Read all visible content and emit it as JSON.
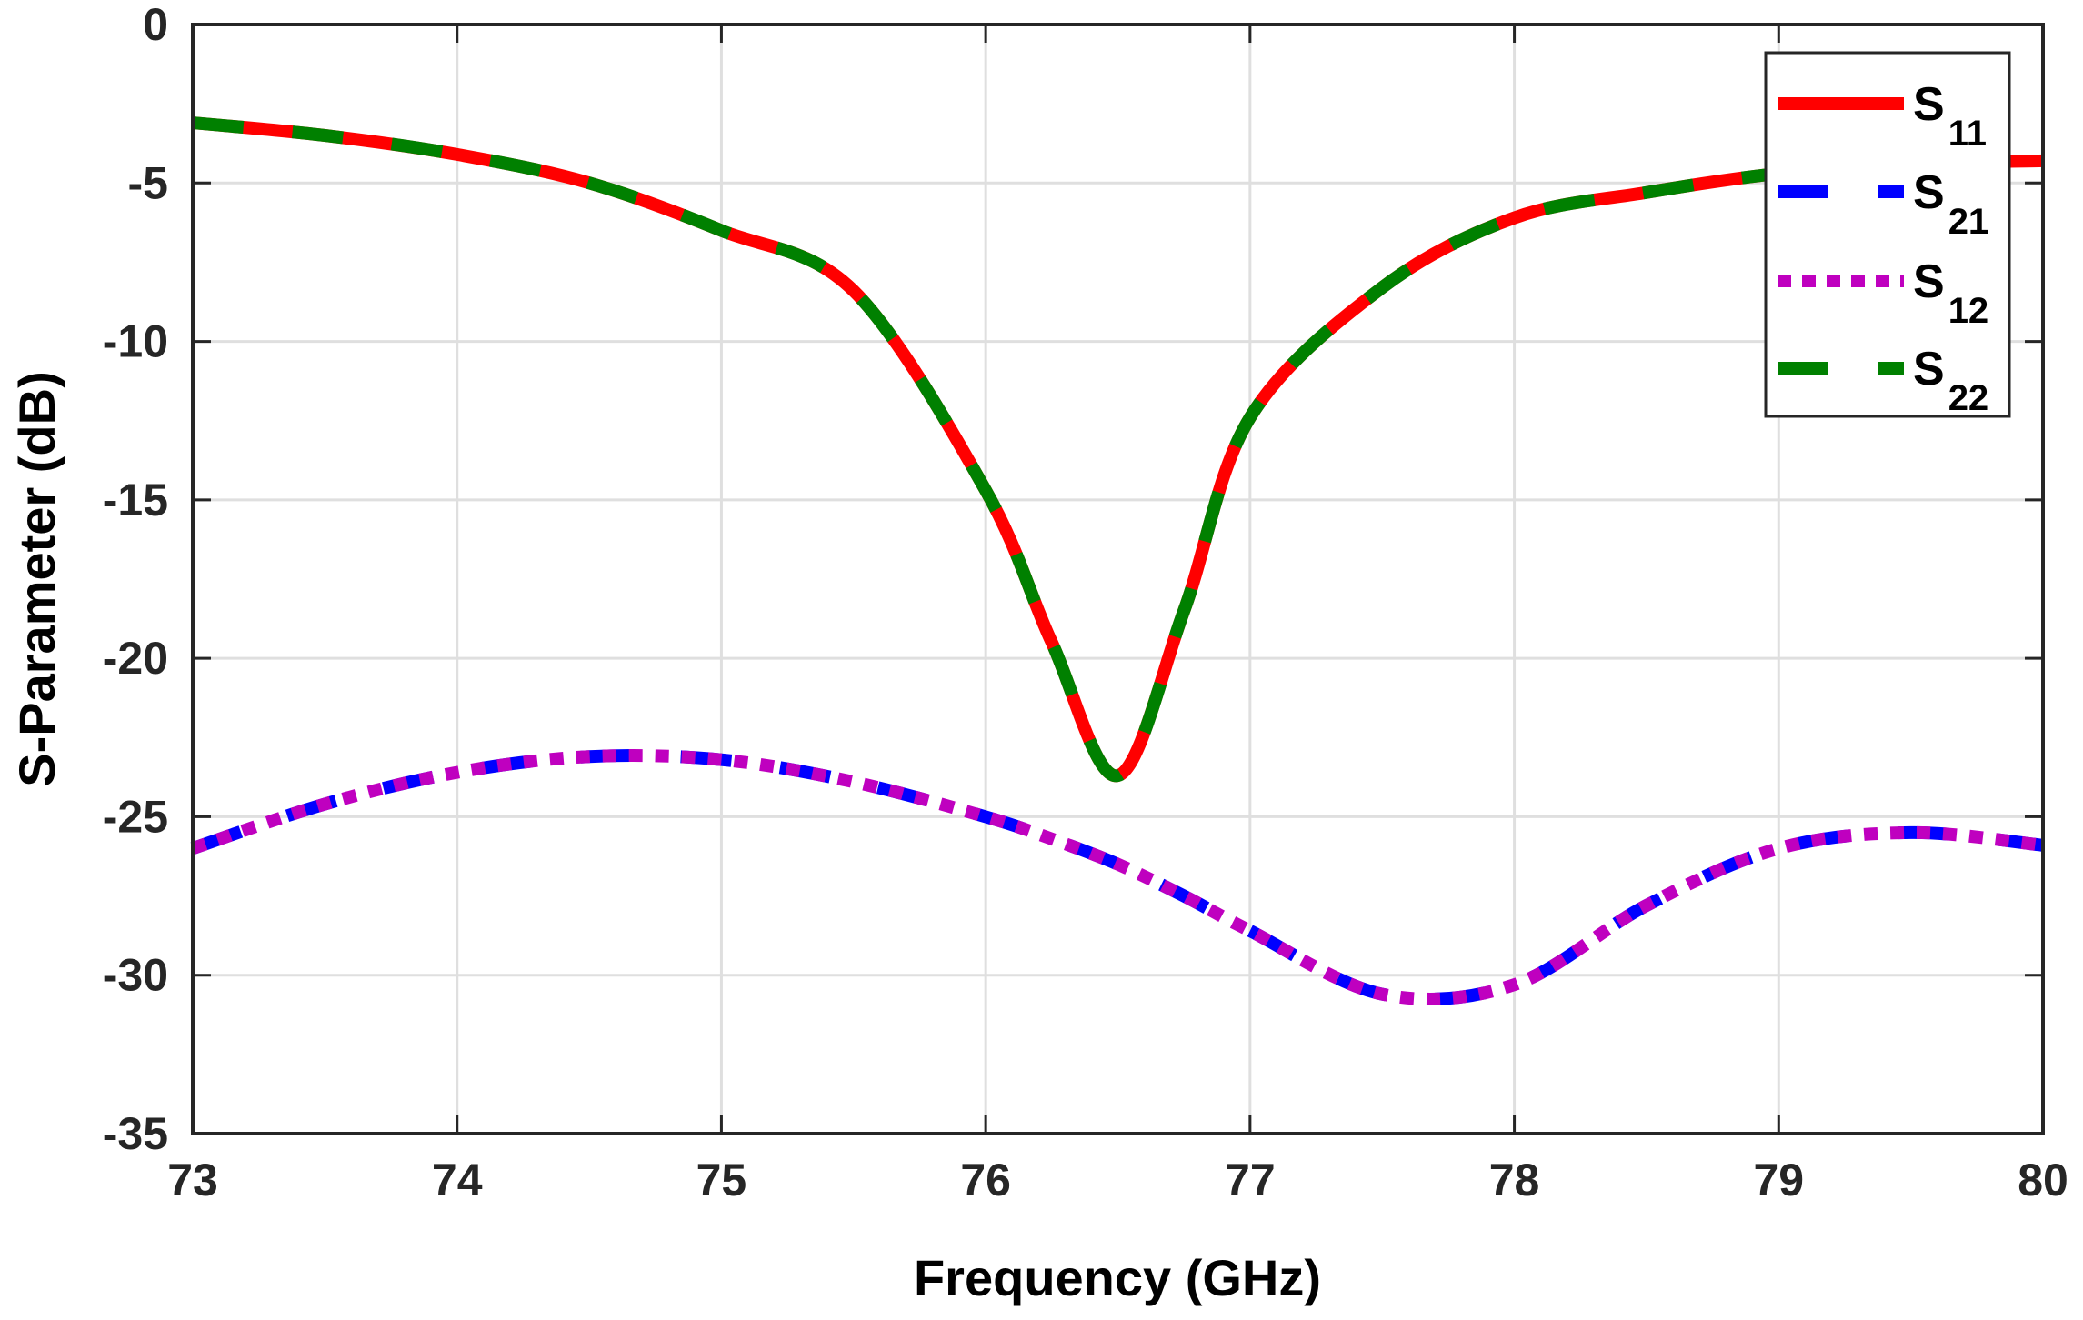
{
  "chart_data": {
    "type": "line",
    "title": "",
    "xlabel": "Frequency (GHz)",
    "ylabel": "S-Parameter (dB)",
    "xlim": [
      73,
      80
    ],
    "ylim": [
      -35,
      0
    ],
    "xticks": [
      73,
      74,
      75,
      76,
      77,
      78,
      79,
      80
    ],
    "yticks": [
      0,
      -5,
      -10,
      -15,
      -20,
      -25,
      -30,
      -35
    ],
    "grid": true,
    "legend_position": "upper right",
    "x": [
      73,
      73.5,
      74,
      74.5,
      75,
      75.5,
      76,
      76.25,
      76.5,
      76.75,
      77,
      77.5,
      78,
      78.5,
      79,
      79.5,
      80
    ],
    "series": [
      {
        "name": "S11",
        "label_main": "S",
        "label_sub": "11",
        "color": "#ff0000",
        "style": "solid",
        "values": [
          -3.1,
          -3.5,
          -4.1,
          -5.0,
          -6.5,
          -8.4,
          -14.7,
          -19.5,
          -23.7,
          -18.5,
          -12.4,
          -8.3,
          -6.1,
          -5.3,
          -4.7,
          -4.4,
          -4.3
        ]
      },
      {
        "name": "S21",
        "label_main": "S",
        "label_sub": "21",
        "color": "#0000ff",
        "style": "dashed",
        "values": [
          -26.0,
          -24.6,
          -23.6,
          -23.1,
          -23.2,
          -23.9,
          -25.0,
          -25.7,
          -26.5,
          -27.5,
          -28.6,
          -30.6,
          -30.3,
          -27.8,
          -26.0,
          -25.5,
          -25.9
        ]
      },
      {
        "name": "S12",
        "label_main": "S",
        "label_sub": "12",
        "color": "#bf00bf",
        "style": "dotted",
        "values": [
          -26.0,
          -24.6,
          -23.6,
          -23.1,
          -23.2,
          -23.9,
          -25.0,
          -25.7,
          -26.5,
          -27.5,
          -28.6,
          -30.6,
          -30.3,
          -27.8,
          -26.0,
          -25.5,
          -25.9
        ]
      },
      {
        "name": "S22",
        "label_main": "S",
        "label_sub": "22",
        "color": "#008000",
        "style": "dashed",
        "values": [
          -3.1,
          -3.5,
          -4.1,
          -5.0,
          -6.5,
          -8.4,
          -14.7,
          -19.5,
          -23.7,
          -18.5,
          -12.4,
          -8.3,
          -6.1,
          -5.3,
          -4.7,
          -4.4,
          -4.3
        ]
      }
    ],
    "annotations": {
      "s11_s22_min": {
        "x": 76.5,
        "y": -23.7
      },
      "s21_s12_min": {
        "x": 77.75,
        "y": -31.1
      },
      "s21_s12_peak": {
        "x": 74.6,
        "y": -23.1
      }
    }
  },
  "axes": {
    "x_title": "Frequency (GHz)",
    "y_title": "S-Parameter (dB)",
    "x_tick_labels": [
      "73",
      "74",
      "75",
      "76",
      "77",
      "78",
      "79",
      "80"
    ],
    "y_tick_labels": [
      "0",
      "-5",
      "-10",
      "-15",
      "-20",
      "-25",
      "-30",
      "-35"
    ]
  },
  "legend": {
    "items": [
      {
        "main": "S",
        "sub": "11"
      },
      {
        "main": "S",
        "sub": "21"
      },
      {
        "main": "S",
        "sub": "12"
      },
      {
        "main": "S",
        "sub": "22"
      }
    ]
  },
  "colors": {
    "s11": "#ff0000",
    "s21": "#0000ff",
    "s12": "#bf00bf",
    "s22": "#008000",
    "axis": "#262626",
    "grid": "#dfdfdf"
  }
}
